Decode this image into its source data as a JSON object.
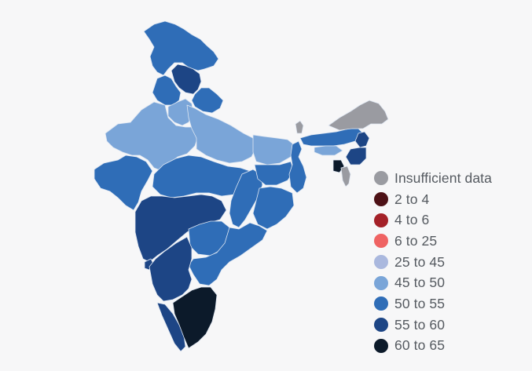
{
  "map": {
    "region": "India",
    "states": [
      {
        "name": "Jammu and Kashmir",
        "category": "50 to 55"
      },
      {
        "name": "Himachal Pradesh",
        "category": "55 to 60"
      },
      {
        "name": "Punjab",
        "category": "50 to 55"
      },
      {
        "name": "Uttarakhand",
        "category": "50 to 55"
      },
      {
        "name": "Haryana",
        "category": "45 to 50"
      },
      {
        "name": "Delhi",
        "category": "45 to 50"
      },
      {
        "name": "Rajasthan",
        "category": "45 to 50"
      },
      {
        "name": "Uttar Pradesh",
        "category": "45 to 50"
      },
      {
        "name": "Bihar",
        "category": "45 to 50"
      },
      {
        "name": "Madhya Pradesh",
        "category": "50 to 55"
      },
      {
        "name": "Gujarat",
        "category": "50 to 55"
      },
      {
        "name": "Maharashtra",
        "category": "55 to 60"
      },
      {
        "name": "Goa",
        "category": "55 to 60"
      },
      {
        "name": "Chhattisgarh",
        "category": "50 to 55"
      },
      {
        "name": "Jharkhand",
        "category": "50 to 55"
      },
      {
        "name": "West Bengal",
        "category": "50 to 55"
      },
      {
        "name": "Odisha",
        "category": "50 to 55"
      },
      {
        "name": "Telangana",
        "category": "50 to 55"
      },
      {
        "name": "Andhra Pradesh",
        "category": "50 to 55"
      },
      {
        "name": "Karnataka",
        "category": "55 to 60"
      },
      {
        "name": "Kerala",
        "category": "55 to 60"
      },
      {
        "name": "Tamil Nadu",
        "category": "60 to 65"
      },
      {
        "name": "Sikkim",
        "category": "Insufficient data"
      },
      {
        "name": "Assam",
        "category": "50 to 55"
      },
      {
        "name": "Meghalaya",
        "category": "45 to 50"
      },
      {
        "name": "Arunachal Pradesh",
        "category": "Insufficient data"
      },
      {
        "name": "Nagaland",
        "category": "55 to 60"
      },
      {
        "name": "Manipur",
        "category": "55 to 60"
      },
      {
        "name": "Mizoram",
        "category": "Insufficient data"
      },
      {
        "name": "Tripura",
        "category": "60 to 65"
      }
    ]
  },
  "legend": {
    "items": [
      {
        "label": "Insufficient data",
        "color": "#9a9ba1"
      },
      {
        "label": "2 to 4",
        "color": "#4d1116"
      },
      {
        "label": "4 to 6",
        "color": "#a42128"
      },
      {
        "label": "6 to 25",
        "color": "#ef6363"
      },
      {
        "label": "25 to 45",
        "color": "#aab8de"
      },
      {
        "label": "45 to 50",
        "color": "#7aa5d8"
      },
      {
        "label": "50 to 55",
        "color": "#2f6db7"
      },
      {
        "label": "55 to 60",
        "color": "#1d4585"
      },
      {
        "label": "60 to 65",
        "color": "#0c1a2a"
      }
    ]
  }
}
